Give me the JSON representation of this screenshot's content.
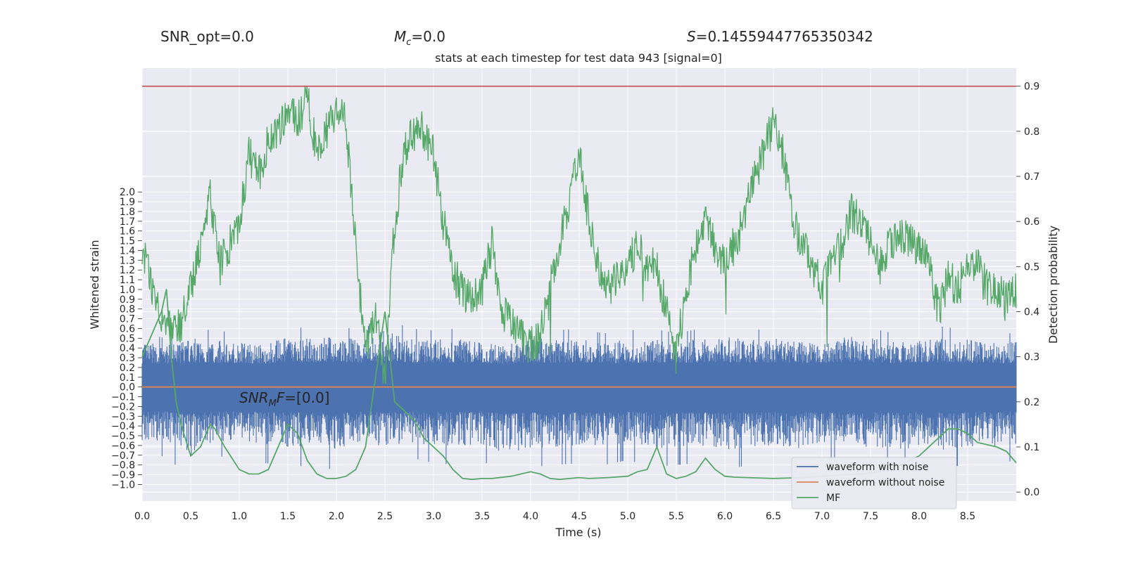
{
  "header": {
    "snr_opt": "SNR_opt=0.0",
    "mc_symbol": "M",
    "mc_sub": "c",
    "mc_value": "=0.0",
    "s_symbol": "S",
    "s_value": "=0.14559447765350342"
  },
  "annotation": {
    "snr_symbol": "SNR",
    "snr_sub": "M",
    "snr_tail": "F",
    "snr_value": "=[0.0]"
  },
  "colors": {
    "plot_bg": "#eaeaf2",
    "grid": "#ffffff",
    "waveform_noise": "#4c72b0",
    "waveform_clean": "#dd8452",
    "mf": "#55a868",
    "threshold": "#c44e52"
  },
  "chart_data": {
    "type": "line",
    "title": "stats at each timestep for test data 943 [signal=0]",
    "xlabel": "Time (s)",
    "ylabel": "Whitened strain",
    "y2label": "Detection probability",
    "xlim": [
      0,
      9.0
    ],
    "ylim": [
      -1.17,
      3.27
    ],
    "y2lim": [
      -0.02,
      0.94
    ],
    "x_ticks": [
      "0.0",
      "0.5",
      "1.0",
      "1.5",
      "2.0",
      "2.5",
      "3.0",
      "3.5",
      "4.0",
      "4.5",
      "5.0",
      "5.5",
      "6.0",
      "6.5",
      "7.0",
      "7.5",
      "8.0",
      "8.5"
    ],
    "y_ticks": [
      "2.0",
      "1.9",
      "1.8",
      "1.7",
      "1.6",
      "1.5",
      "1.4",
      "1.3",
      "1.2",
      "1.1",
      "1.0",
      "0.9",
      "0.8",
      "0.7",
      "0.6",
      "0.5",
      "0.4",
      "0.3",
      "0.2",
      "0.1",
      "0.0",
      "−0.1",
      "−0.2",
      "−0.3",
      "−0.4",
      "−0.5",
      "−0.6",
      "−0.7",
      "−0.8",
      "−0.9",
      "−1.0"
    ],
    "y2_ticks": [
      "0.9",
      "0.8",
      "0.7",
      "0.6",
      "0.5",
      "0.4",
      "0.3",
      "0.2",
      "0.1",
      "0.0"
    ],
    "threshold": 0.9,
    "legend": {
      "placement": "lower right",
      "entries": [
        "waveform with noise",
        "waveform without noise",
        "MF"
      ]
    },
    "series": [
      {
        "name": "waveform with noise",
        "axis": "left",
        "description_values": {
          "band_core": [
            -0.2,
            0.2
          ],
          "spikes_max": 0.72,
          "spikes_min": -0.97
        },
        "x": [
          0.0,
          0.25,
          0.5,
          0.75,
          1.0,
          1.25,
          1.5,
          1.75,
          2.0,
          2.25,
          2.5,
          2.75,
          3.0,
          3.25,
          3.5,
          3.75,
          4.0,
          4.25,
          4.5,
          4.75,
          5.0,
          5.25,
          5.5,
          5.75,
          6.0,
          6.25,
          6.5,
          6.75,
          7.0,
          7.25,
          7.5,
          7.75,
          8.0,
          8.25,
          8.5,
          8.75,
          9.0
        ],
        "upper": [
          0.55,
          0.5,
          0.6,
          0.58,
          0.55,
          0.52,
          0.62,
          0.6,
          0.63,
          0.58,
          0.72,
          0.6,
          0.58,
          0.6,
          0.55,
          0.5,
          0.62,
          0.58,
          0.6,
          0.55,
          0.58,
          0.6,
          0.55,
          0.6,
          0.62,
          0.58,
          0.6,
          0.55,
          0.55,
          0.62,
          0.6,
          0.55,
          0.6,
          0.62,
          0.58,
          0.55,
          0.55
        ],
        "lower": [
          -0.75,
          -0.7,
          -0.97,
          -0.72,
          -0.7,
          -0.78,
          -0.8,
          -0.82,
          -0.85,
          -0.75,
          -0.8,
          -0.72,
          -0.78,
          -0.8,
          -0.75,
          -0.92,
          -0.82,
          -0.8,
          -0.78,
          -0.8,
          -0.75,
          -0.82,
          -0.8,
          -0.78,
          -0.85,
          -0.8,
          -0.78,
          -0.82,
          -0.75,
          -0.78,
          -0.8,
          -0.85,
          -0.8,
          -0.85,
          -0.78,
          -0.8,
          -0.75
        ]
      },
      {
        "name": "waveform without noise",
        "axis": "left",
        "x": [
          0.0,
          9.0
        ],
        "values": [
          0.0,
          0.0
        ]
      },
      {
        "name": "MF",
        "axis": "right",
        "x": [
          0.0,
          0.1,
          0.2,
          0.25,
          0.3,
          0.35,
          0.4,
          0.5,
          0.6,
          0.7,
          0.75,
          0.85,
          1.0,
          1.1,
          1.2,
          1.3,
          1.4,
          1.5,
          1.6,
          1.7,
          1.8,
          1.9,
          2.0,
          2.1,
          2.2,
          2.3,
          2.4,
          2.5,
          2.6,
          2.7,
          2.8,
          2.9,
          3.0,
          3.1,
          3.2,
          3.3,
          3.4,
          3.5,
          3.6,
          3.8,
          4.0,
          4.1,
          4.2,
          4.3,
          4.4,
          4.5,
          4.6,
          4.8,
          5.0,
          5.1,
          5.2,
          5.3,
          5.4,
          5.5,
          5.6,
          5.7,
          5.8,
          5.9,
          6.0,
          6.1,
          6.5,
          6.8,
          7.0,
          7.2,
          7.4,
          7.6,
          7.8,
          8.0,
          8.2,
          8.3,
          8.4,
          8.5,
          8.6,
          8.8,
          8.9,
          9.0
        ],
        "values": [
          0.3,
          0.35,
          0.4,
          0.45,
          0.3,
          0.2,
          0.15,
          0.08,
          0.1,
          0.15,
          0.14,
          0.1,
          0.05,
          0.04,
          0.04,
          0.05,
          0.1,
          0.15,
          0.13,
          0.07,
          0.04,
          0.03,
          0.03,
          0.035,
          0.05,
          0.1,
          0.25,
          0.4,
          0.2,
          0.18,
          0.16,
          0.12,
          0.1,
          0.08,
          0.05,
          0.03,
          0.028,
          0.03,
          0.03,
          0.035,
          0.045,
          0.04,
          0.03,
          0.028,
          0.03,
          0.032,
          0.03,
          0.032,
          0.035,
          0.045,
          0.05,
          0.1,
          0.04,
          0.03,
          0.035,
          0.045,
          0.075,
          0.05,
          0.035,
          0.033,
          0.03,
          0.032,
          0.035,
          0.038,
          0.04,
          0.045,
          0.06,
          0.08,
          0.12,
          0.14,
          0.14,
          0.13,
          0.11,
          0.1,
          0.09,
          0.065
        ],
        "fluct_x": [
          0.0,
          0.1,
          0.2,
          0.3,
          0.4,
          0.5,
          0.6,
          0.7,
          0.8,
          0.9,
          1.0,
          1.1,
          1.2,
          1.3,
          1.4,
          1.5,
          1.6,
          1.7,
          1.8,
          1.9,
          2.0,
          2.1,
          2.2,
          2.3,
          2.4,
          2.5,
          2.6,
          2.7,
          2.8,
          2.9,
          3.0,
          3.1,
          3.2,
          3.3,
          3.4,
          3.5,
          3.6,
          3.7,
          3.8,
          3.9,
          4.0,
          4.1,
          4.2,
          4.3,
          4.4,
          4.5,
          4.6,
          4.7,
          4.8,
          4.9,
          5.0,
          5.1,
          5.2,
          5.3,
          5.4,
          5.5,
          5.6,
          5.7,
          5.8,
          5.9,
          6.0,
          6.1,
          6.2,
          6.3,
          6.4,
          6.5,
          6.6,
          6.7,
          6.8,
          6.9,
          7.0,
          7.1,
          7.2,
          7.3,
          7.4,
          7.5,
          7.6,
          7.7,
          7.8,
          7.9,
          8.0,
          8.1,
          8.2,
          8.3,
          8.4,
          8.5,
          8.6,
          8.7,
          8.8,
          8.9,
          9.0
        ],
        "fluct_values": [
          0.55,
          0.45,
          0.4,
          0.35,
          0.37,
          0.45,
          0.55,
          0.65,
          0.5,
          0.55,
          0.6,
          0.75,
          0.7,
          0.78,
          0.8,
          0.85,
          0.82,
          0.88,
          0.75,
          0.8,
          0.85,
          0.82,
          0.55,
          0.3,
          0.4,
          0.25,
          0.6,
          0.75,
          0.8,
          0.8,
          0.75,
          0.6,
          0.48,
          0.45,
          0.42,
          0.45,
          0.55,
          0.4,
          0.38,
          0.35,
          0.32,
          0.35,
          0.45,
          0.55,
          0.65,
          0.75,
          0.6,
          0.5,
          0.45,
          0.48,
          0.5,
          0.55,
          0.5,
          0.5,
          0.4,
          0.3,
          0.45,
          0.55,
          0.6,
          0.55,
          0.5,
          0.55,
          0.6,
          0.7,
          0.75,
          0.82,
          0.75,
          0.6,
          0.55,
          0.5,
          0.45,
          0.5,
          0.55,
          0.62,
          0.6,
          0.55,
          0.5,
          0.55,
          0.58,
          0.55,
          0.55,
          0.5,
          0.4,
          0.48,
          0.45,
          0.5,
          0.5,
          0.45,
          0.45,
          0.42,
          0.45
        ]
      }
    ]
  }
}
